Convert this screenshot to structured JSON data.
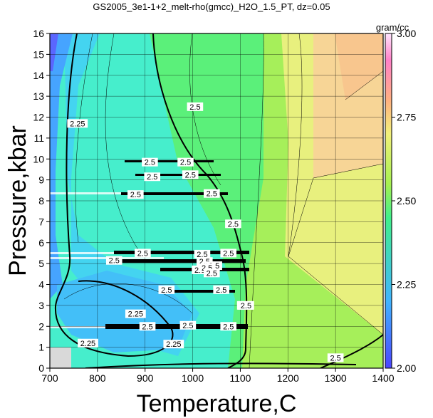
{
  "chart_data": {
    "type": "heatmap",
    "title": "GS2005_3e1-1+2_melt-rho(gmcc)_H2O_1.5_PT, dz=0.05",
    "xlabel": "Temperature,C",
    "ylabel": "Pressure,kbar",
    "xlim": [
      700,
      1400
    ],
    "ylim": [
      0,
      16
    ],
    "x_ticks": [
      700,
      800,
      900,
      1000,
      1100,
      1200,
      1300,
      1400
    ],
    "y_ticks": [
      0,
      1,
      2,
      3,
      4,
      5,
      6,
      7,
      8,
      9,
      10,
      11,
      12,
      13,
      14,
      15,
      16
    ],
    "grid": true,
    "colorbar": {
      "unit": "gram/cc",
      "range": [
        2.0,
        3.0
      ],
      "ticks": [
        "2.00",
        "2.25",
        "2.50",
        "2.75",
        "3.00"
      ],
      "colors": [
        "#4040ff",
        "#40c0ff",
        "#40ff80",
        "#c0ff40",
        "#ffd080",
        "#ff80c0",
        "#ffe8ff"
      ]
    },
    "contour_labels": [
      "2.25",
      "2.5"
    ],
    "contour_label_positions": [
      {
        "label": "2.25",
        "T": 758,
        "P": 11.7
      },
      {
        "label": "2.5",
        "T": 1005,
        "P": 12.5
      },
      {
        "label": "2.5",
        "T": 1110,
        "P": 3.0
      },
      {
        "label": "2.5",
        "T": 1112,
        "P": 3.0
      },
      {
        "label": "2.25",
        "T": 780,
        "P": 1.2
      },
      {
        "label": "2.25",
        "T": 880,
        "P": 2.6
      },
      {
        "label": "2.25",
        "T": 960,
        "P": 1.15
      },
      {
        "label": "2.5",
        "T": 910,
        "P": 9.85
      },
      {
        "label": "2.5",
        "T": 985,
        "P": 9.85
      },
      {
        "label": "2.5",
        "T": 915,
        "P": 9.15
      },
      {
        "label": "2.5",
        "T": 995,
        "P": 9.25
      },
      {
        "label": "2.5",
        "T": 880,
        "P": 8.3
      },
      {
        "label": "2.5",
        "T": 1040,
        "P": 8.35
      },
      {
        "label": "2.5",
        "T": 1085,
        "P": 6.9
      },
      {
        "label": "2.5",
        "T": 895,
        "P": 5.5
      },
      {
        "label": "2.5",
        "T": 1020,
        "P": 5.45
      },
      {
        "label": "2.5",
        "T": 1075,
        "P": 5.5
      },
      {
        "label": "2.5",
        "T": 835,
        "P": 5.15
      },
      {
        "label": "2.5",
        "T": 1025,
        "P": 5.1
      },
      {
        "label": "2.5",
        "T": 1045,
        "P": 4.9
      },
      {
        "label": "2.5",
        "T": 1015,
        "P": 4.7
      },
      {
        "label": "2.5",
        "T": 1030,
        "P": 4.8
      },
      {
        "label": "2.5",
        "T": 1040,
        "P": 4.55
      },
      {
        "label": "2.5",
        "T": 945,
        "P": 3.75
      },
      {
        "label": "2.5",
        "T": 1060,
        "P": 3.75
      },
      {
        "label": "2.5",
        "T": 905,
        "P": 2.0
      },
      {
        "label": "2.5",
        "T": 990,
        "P": 2.05
      },
      {
        "label": "2.5",
        "T": 1075,
        "P": 2.0
      },
      {
        "label": "2.5",
        "T": 1300,
        "P": 0.5
      }
    ]
  }
}
